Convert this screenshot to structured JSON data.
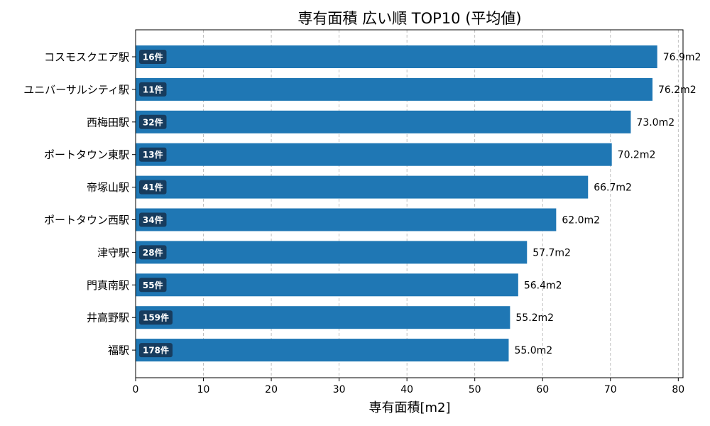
{
  "chart_data": {
    "type": "bar",
    "orientation": "horizontal",
    "title": "専有面積 広い順 TOP10 (平均値)",
    "xlabel": "専有面積[m2]",
    "ylabel": "",
    "xlim": [
      0,
      80.7
    ],
    "xticks": [
      0,
      10,
      20,
      30,
      40,
      50,
      60,
      70,
      80
    ],
    "grid": "x-dashed",
    "bar_color": "#1f77b4",
    "badge_color": "#173c5e",
    "categories": [
      "コスモスクエア駅",
      "ユニバーサルシティ駅",
      "西梅田駅",
      "ポートタウン東駅",
      "帝塚山駅",
      "ポートタウン西駅",
      "津守駅",
      "門真南駅",
      "井高野駅",
      "福駅"
    ],
    "values": [
      76.9,
      76.2,
      73.0,
      70.2,
      66.7,
      62.0,
      57.7,
      56.4,
      55.2,
      55.0
    ],
    "value_labels": [
      "76.9m2",
      "76.2m2",
      "73.0m2",
      "70.2m2",
      "66.7m2",
      "62.0m2",
      "57.7m2",
      "56.4m2",
      "55.2m2",
      "55.0m2"
    ],
    "counts": [
      "16件",
      "11件",
      "32件",
      "13件",
      "41件",
      "34件",
      "28件",
      "55件",
      "159件",
      "178件"
    ]
  }
}
